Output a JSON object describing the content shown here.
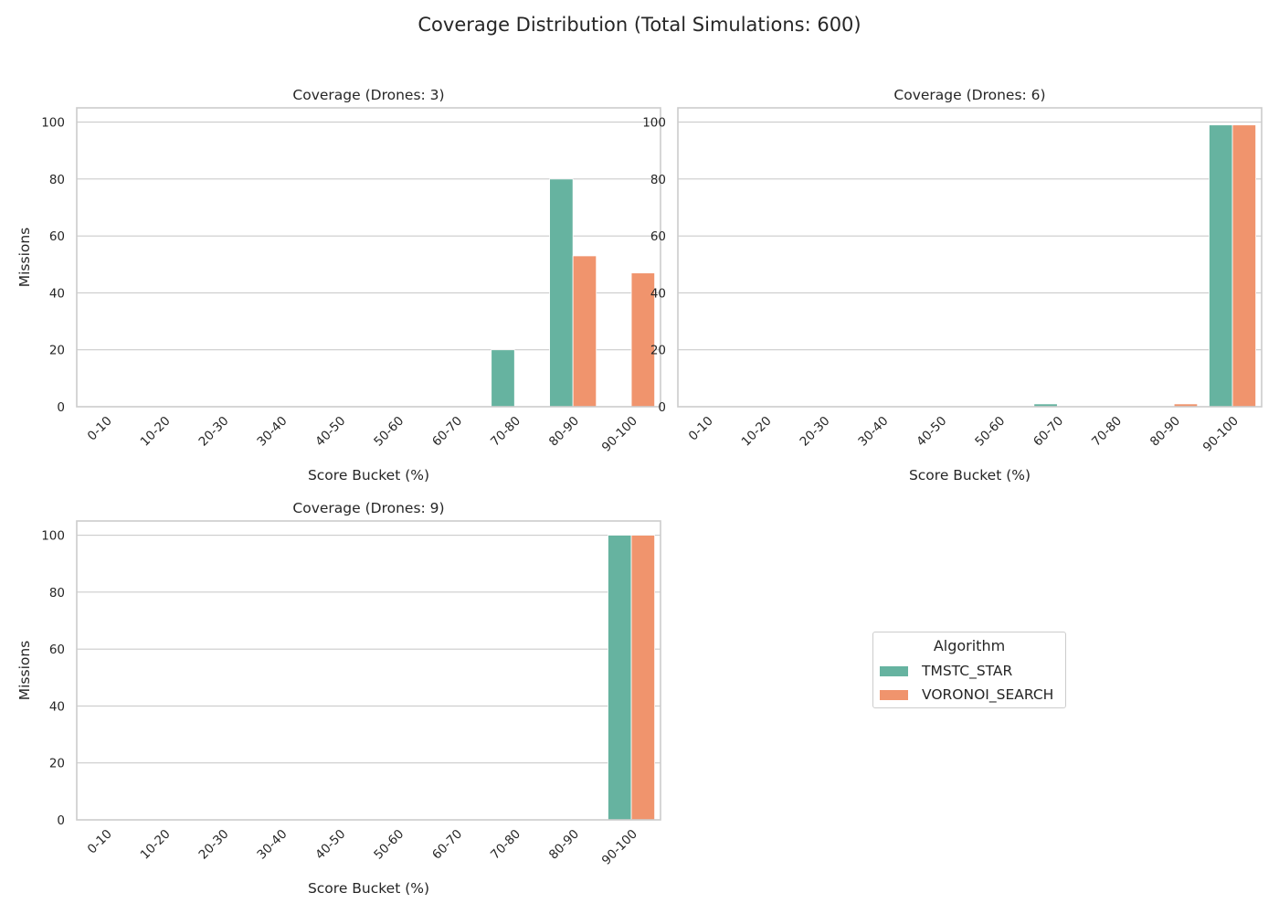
{
  "figure": {
    "title": "Coverage Distribution (Total Simulations: 600)"
  },
  "legend": {
    "title": "Algorithm",
    "placement": "right-center",
    "entries": [
      {
        "name": "TMSTC_STAR",
        "color": "#66b3a0"
      },
      {
        "name": "VORONOI_SEARCH",
        "color": "#f0946d"
      }
    ]
  },
  "chart_data": [
    {
      "type": "bar",
      "title": "Coverage (Drones: 3)",
      "xlabel": "Score Bucket (%)",
      "ylabel": "Missions",
      "ylim": [
        0,
        105
      ],
      "yticks": [
        0,
        20,
        40,
        60,
        80,
        100
      ],
      "grid": true,
      "categories": [
        "0-10",
        "10-20",
        "20-30",
        "30-40",
        "40-50",
        "50-60",
        "60-70",
        "70-80",
        "80-90",
        "90-100"
      ],
      "series": [
        {
          "name": "TMSTC_STAR",
          "color": "#66b3a0",
          "values": [
            0,
            0,
            0,
            0,
            0,
            0,
            0,
            20,
            80,
            0
          ]
        },
        {
          "name": "VORONOI_SEARCH",
          "color": "#f0946d",
          "values": [
            0,
            0,
            0,
            0,
            0,
            0,
            0,
            0,
            53,
            47
          ]
        }
      ]
    },
    {
      "type": "bar",
      "title": "Coverage (Drones: 6)",
      "xlabel": "Score Bucket (%)",
      "ylabel": "",
      "ylim": [
        0,
        105
      ],
      "yticks": [
        0,
        20,
        40,
        60,
        80,
        100
      ],
      "grid": true,
      "categories": [
        "0-10",
        "10-20",
        "20-30",
        "30-40",
        "40-50",
        "50-60",
        "60-70",
        "70-80",
        "80-90",
        "90-100"
      ],
      "series": [
        {
          "name": "TMSTC_STAR",
          "color": "#66b3a0",
          "values": [
            0,
            0,
            0,
            0,
            0,
            0,
            1,
            0,
            0,
            99
          ]
        },
        {
          "name": "VORONOI_SEARCH",
          "color": "#f0946d",
          "values": [
            0,
            0,
            0,
            0,
            0,
            0,
            0,
            0,
            1,
            99
          ]
        }
      ]
    },
    {
      "type": "bar",
      "title": "Coverage (Drones: 9)",
      "xlabel": "Score Bucket (%)",
      "ylabel": "Missions",
      "ylim": [
        0,
        105
      ],
      "yticks": [
        0,
        20,
        40,
        60,
        80,
        100
      ],
      "grid": true,
      "categories": [
        "0-10",
        "10-20",
        "20-30",
        "30-40",
        "40-50",
        "50-60",
        "60-70",
        "70-80",
        "80-90",
        "90-100"
      ],
      "series": [
        {
          "name": "TMSTC_STAR",
          "color": "#66b3a0",
          "values": [
            0,
            0,
            0,
            0,
            0,
            0,
            0,
            0,
            0,
            100
          ]
        },
        {
          "name": "VORONOI_SEARCH",
          "color": "#f0946d",
          "values": [
            0,
            0,
            0,
            0,
            0,
            0,
            0,
            0,
            0,
            100
          ]
        }
      ]
    }
  ]
}
